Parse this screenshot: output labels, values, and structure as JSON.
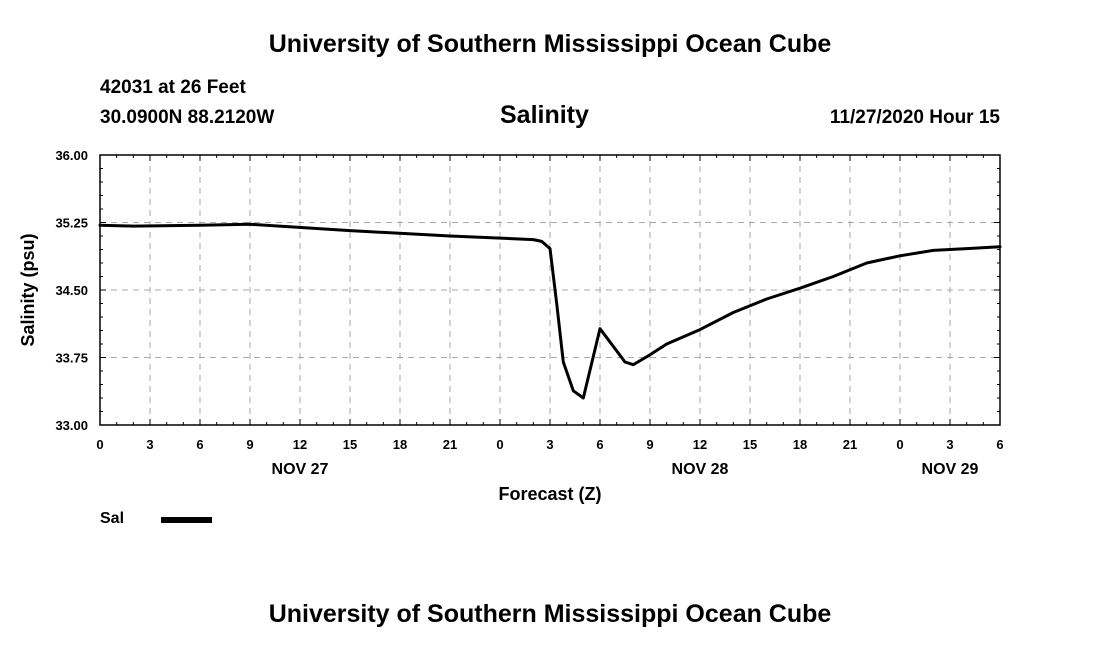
{
  "header": {
    "title": "University of Southern Mississippi Ocean Cube",
    "station": "42031 at 26 Feet",
    "coordinates": "30.0900N 88.2120W",
    "chart_title": "Salinity",
    "datetime": "11/27/2020 Hour 15"
  },
  "footer": {
    "title": "University of Southern Mississippi Ocean Cube"
  },
  "chart_data": {
    "type": "line",
    "title": "Salinity",
    "xlabel": "Forecast (Z)",
    "ylabel": "Salinity (psu)",
    "ylim": [
      33.0,
      36.0
    ],
    "xlim": [
      0,
      54
    ],
    "grid": true,
    "y_ticks": [
      "33.00",
      "33.75",
      "34.50",
      "35.25",
      "36.00"
    ],
    "y_tick_values": [
      33.0,
      33.75,
      34.5,
      35.25,
      36.0
    ],
    "x_ticks": [
      "0",
      "3",
      "6",
      "9",
      "12",
      "15",
      "18",
      "21",
      "0",
      "3",
      "6",
      "9",
      "12",
      "15",
      "18",
      "21",
      "0",
      "3",
      "6"
    ],
    "x_tick_values": [
      0,
      3,
      6,
      9,
      12,
      15,
      18,
      21,
      24,
      27,
      30,
      33,
      36,
      39,
      42,
      45,
      48,
      51,
      54
    ],
    "day_labels": [
      {
        "label": "NOV 27",
        "hour": 12
      },
      {
        "label": "NOV 28",
        "hour": 36
      },
      {
        "label": "NOV 29",
        "hour": 51
      }
    ],
    "legend": [
      {
        "name": "Sal",
        "color": "#000000"
      }
    ],
    "series": [
      {
        "name": "Sal",
        "color": "#000000",
        "x": [
          0,
          2,
          6,
          9,
          15,
          21,
          26,
          26.5,
          27,
          27.4,
          27.8,
          28.4,
          29,
          30,
          31.5,
          32,
          33,
          34,
          36,
          38,
          40,
          42,
          44,
          46,
          48,
          50,
          52,
          54
        ],
        "y": [
          35.22,
          35.21,
          35.22,
          35.23,
          35.16,
          35.1,
          35.06,
          35.04,
          34.96,
          34.35,
          33.7,
          33.38,
          33.3,
          34.07,
          33.7,
          33.67,
          33.78,
          33.9,
          34.06,
          34.25,
          34.4,
          34.52,
          34.65,
          34.8,
          34.88,
          34.94,
          34.96,
          34.98
        ]
      }
    ]
  }
}
